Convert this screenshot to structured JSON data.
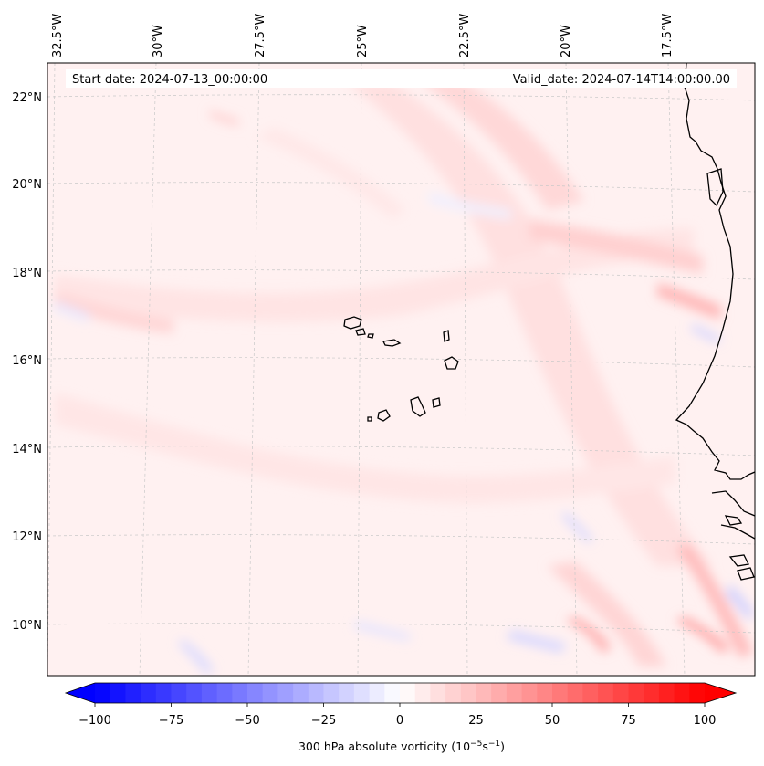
{
  "header": {
    "start_date": "Start date: 2024-07-13_00:00:00",
    "valid_date": "Valid_date: 2024-07-14T14:00:00.00"
  },
  "longitude_labels": [
    "32.5°W",
    "30°W",
    "27.5°W",
    "25°W",
    "22.5°W",
    "20°W",
    "17.5°W"
  ],
  "latitude_labels": [
    "22°N",
    "20°N",
    "18°N",
    "16°N",
    "14°N",
    "12°N",
    "10°N"
  ],
  "colorbar": {
    "ticks": [
      "−100",
      "−75",
      "−50",
      "−25",
      "0",
      "25",
      "50",
      "75",
      "100"
    ],
    "label_main": "300 hPa absolute vorticity (10",
    "label_exp1": "−5",
    "label_mid": "s",
    "label_exp2": "−1",
    "label_end": ")",
    "min": -100,
    "max": 100,
    "low_color": "#0000ff",
    "high_color": "#ff0000"
  }
}
